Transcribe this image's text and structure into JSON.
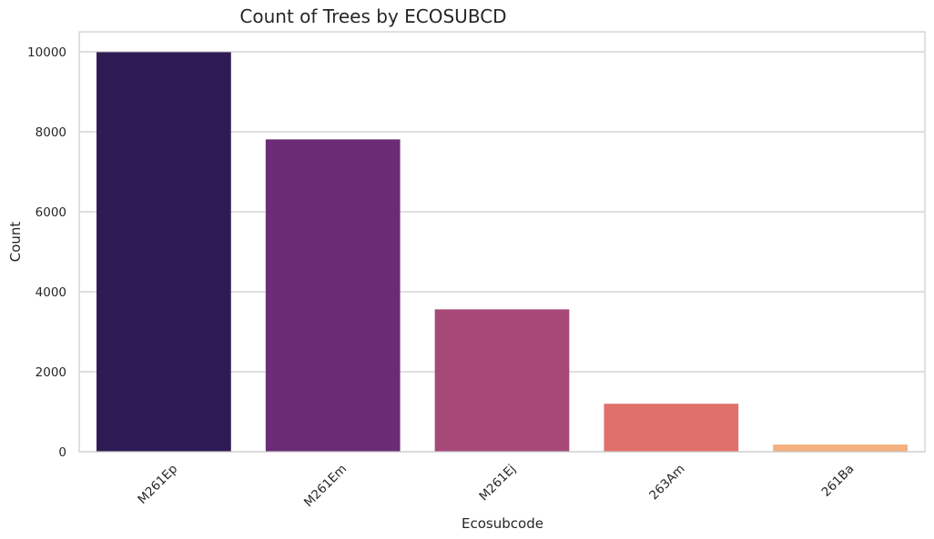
{
  "chart_data": {
    "type": "bar",
    "title": "Count of Trees by ECOSUBCD",
    "xlabel": "Ecosubcode",
    "ylabel": "Count",
    "categories": [
      "M261Ep",
      "M261Em",
      "M261Ej",
      "263Am",
      "261Ba"
    ],
    "values": [
      9990,
      7810,
      3560,
      1200,
      180
    ],
    "colors": [
      "#2f1b54",
      "#6a2c75",
      "#a64878",
      "#e0706c",
      "#f4b07e"
    ],
    "ylim": [
      0,
      10500
    ],
    "yticks": [
      0,
      2000,
      4000,
      6000,
      8000,
      10000
    ],
    "ytick_labels": [
      "0",
      "2000",
      "4000",
      "6000",
      "8000",
      "10000"
    ],
    "grid": true,
    "grid_axis": "y",
    "xtick_rotation": 45
  }
}
